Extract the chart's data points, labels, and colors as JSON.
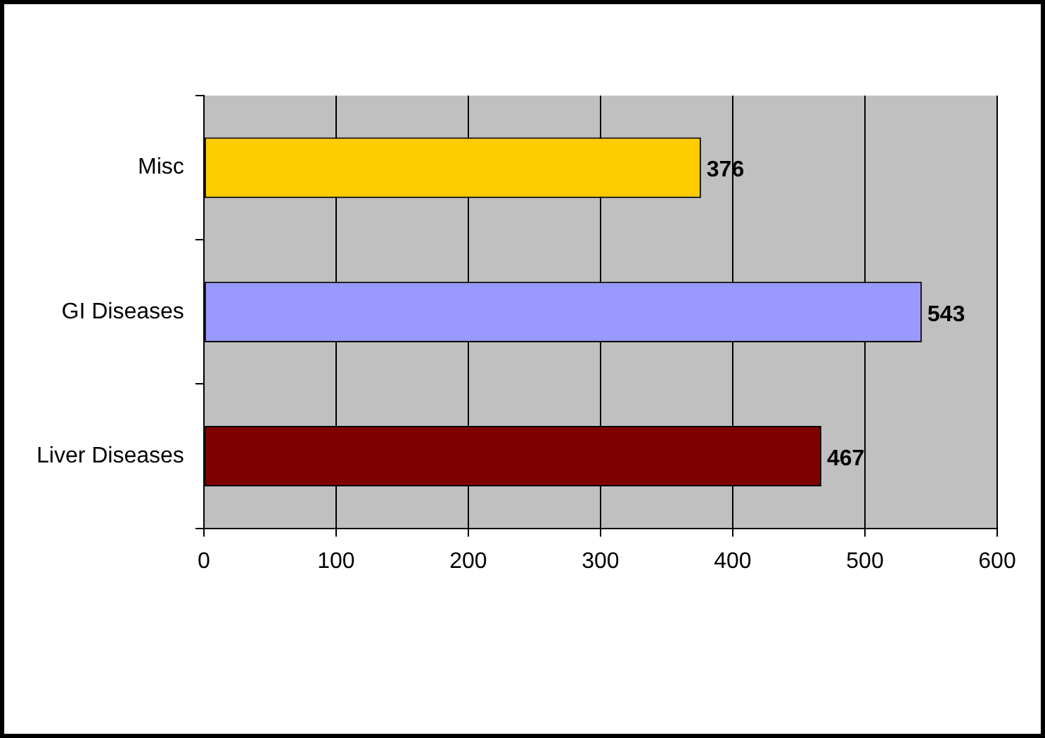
{
  "chart_data": {
    "type": "bar",
    "orientation": "horizontal",
    "categories": [
      "Misc",
      "GI Diseases",
      "Liver Diseases"
    ],
    "values": [
      376,
      543,
      467
    ],
    "colors": [
      "#ffcc00",
      "#9999ff",
      "#800000"
    ],
    "xlim": [
      0,
      600
    ],
    "xticks": [
      0,
      100,
      200,
      300,
      400,
      500,
      600
    ],
    "grid": "x",
    "data_labels": true
  }
}
